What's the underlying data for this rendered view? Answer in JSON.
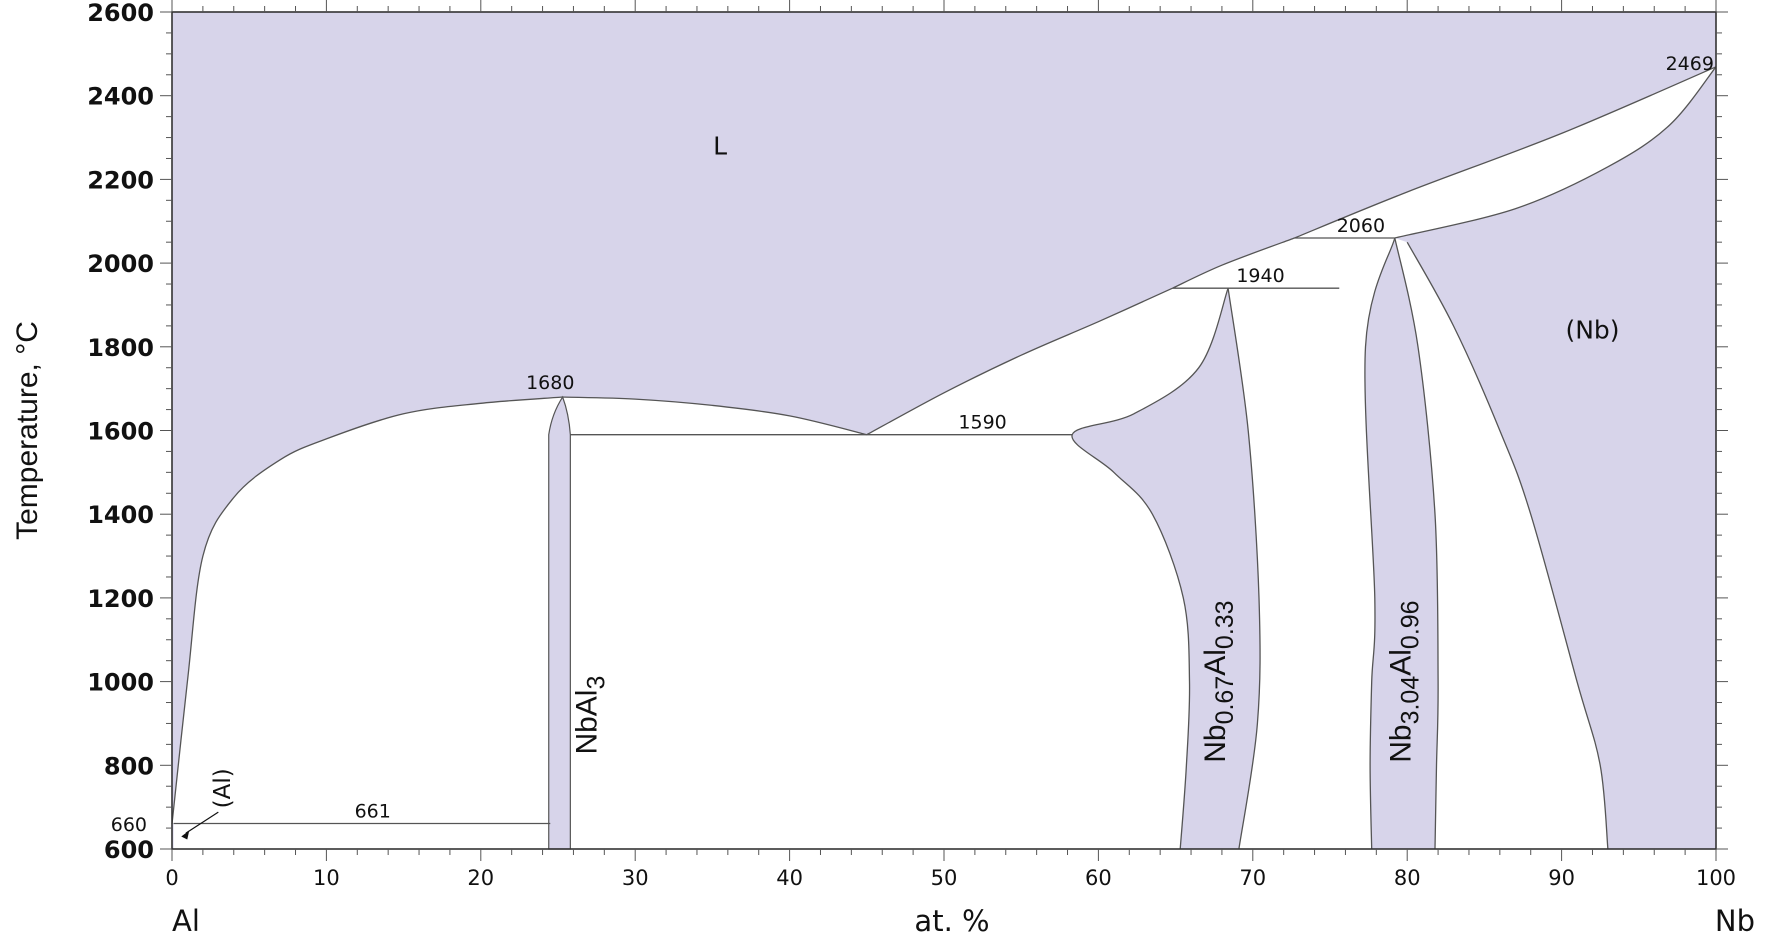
{
  "chart_data": {
    "type": "phase-diagram",
    "title": "",
    "ylabel": "Temperature, °C",
    "xlabel": "at. %",
    "x_left_element": "Al",
    "x_right_element": "Nb",
    "xlim": [
      0,
      100
    ],
    "ylim": [
      600,
      2600
    ],
    "x_ticks": [
      "0",
      "10",
      "20",
      "30",
      "40",
      "50",
      "60",
      "70",
      "80",
      "90",
      "100"
    ],
    "y_ticks": [
      "600",
      "800",
      "1000",
      "1200",
      "1400",
      "1600",
      "1800",
      "2000",
      "2200",
      "2400",
      "2600"
    ],
    "grid": false,
    "colors": {
      "phase_fill": "#d7d4ea",
      "line": "#555555",
      "background": "#ffffff"
    },
    "phase_labels": {
      "liquid": "L",
      "nb_solid": "(Nb)",
      "al_solid": "(Al)",
      "nbal3": {
        "base": "NbAl",
        "sub": "3"
      },
      "sigma": {
        "a": "Nb",
        "as": "0.67",
        "b": "Al",
        "bs": "0.33"
      },
      "a15": {
        "a": "Nb",
        "as": "3.04",
        "b": "Al",
        "bs": "0.96"
      }
    },
    "invariant_labels": [
      "2469",
      "2060",
      "1940",
      "1680",
      "1590",
      "661",
      "660"
    ],
    "invariants": [
      {
        "label": "2469",
        "type": "melting point",
        "x": 100,
        "T": 2469
      },
      {
        "label": "2060",
        "type": "peritectic",
        "x_range": [
          72.7,
          79.2
        ],
        "T": 2060
      },
      {
        "label": "1940",
        "type": "peritectic",
        "x_range": [
          64.8,
          75.6
        ],
        "T": 1940
      },
      {
        "label": "1680",
        "type": "congruent melting",
        "x": 25.3,
        "T": 1680
      },
      {
        "label": "1590",
        "type": "eutectic",
        "x_range": [
          25.8,
          58.3
        ],
        "T": 1590
      },
      {
        "label": "661",
        "type": "eutectic",
        "x_range": [
          0.1,
          24.5
        ],
        "T": 661
      },
      {
        "label": "660",
        "type": "melting point",
        "x": 0,
        "T": 660
      }
    ],
    "boundaries": {
      "liquidus_al_nbal3": [
        [
          0,
          660
        ],
        [
          1,
          1000
        ],
        [
          2,
          1300
        ],
        [
          4,
          1440
        ],
        [
          7,
          1530
        ],
        [
          10,
          1580
        ],
        [
          15,
          1640
        ],
        [
          20,
          1665
        ],
        [
          25.3,
          1680
        ]
      ],
      "liquidus_nbal3_eut": [
        [
          25.3,
          1680
        ],
        [
          30,
          1675
        ],
        [
          35,
          1660
        ],
        [
          40,
          1635
        ],
        [
          45,
          1590
        ]
      ],
      "liquidus_eut_1940": [
        [
          45,
          1590
        ],
        [
          50,
          1690
        ],
        [
          55,
          1780
        ],
        [
          60,
          1860
        ],
        [
          64.8,
          1940
        ]
      ],
      "liquidus_1940_2060": [
        [
          64.8,
          1940
        ],
        [
          68,
          1995
        ],
        [
          72.7,
          2060
        ]
      ],
      "liquidus_2060_Nb": [
        [
          72.7,
          2060
        ],
        [
          80,
          2170
        ],
        [
          90,
          2310
        ],
        [
          100,
          2469
        ]
      ],
      "solidus_2060_Nb": [
        [
          79.2,
          2060
        ],
        [
          87,
          2130
        ],
        [
          93,
          2230
        ],
        [
          97,
          2330
        ],
        [
          100,
          2469
        ]
      ],
      "nb_solvus": [
        [
          80,
          2050
        ],
        [
          83,
          1850
        ],
        [
          86,
          1600
        ],
        [
          88,
          1400
        ],
        [
          91,
          1000
        ],
        [
          92.5,
          800
        ],
        [
          93,
          600
        ]
      ],
      "a15_right": [
        [
          79.2,
          2060
        ],
        [
          80.7,
          1800
        ],
        [
          81.8,
          1400
        ],
        [
          82,
          1000
        ],
        [
          81.9,
          800
        ],
        [
          81.8,
          600
        ]
      ],
      "a15_left": [
        [
          79.2,
          2060
        ],
        [
          77.3,
          1800
        ],
        [
          77.9,
          1200
        ],
        [
          77.7,
          1000
        ],
        [
          77.6,
          800
        ],
        [
          77.7,
          600
        ]
      ],
      "sigma_right": [
        [
          68.4,
          1940
        ],
        [
          69.7,
          1600
        ],
        [
          70.4,
          1200
        ],
        [
          70.3,
          900
        ],
        [
          69.1,
          600
        ]
      ],
      "sigma_left": [
        [
          68.4,
          1940
        ],
        [
          66.5,
          1750
        ],
        [
          62.3,
          1640
        ],
        [
          58.3,
          1590
        ],
        [
          61,
          1500
        ],
        [
          63.5,
          1400
        ],
        [
          65.5,
          1200
        ],
        [
          65.9,
          1000
        ],
        [
          65.7,
          800
        ],
        [
          65.3,
          600
        ]
      ],
      "nbal3_phase": [
        [
          25.3,
          1680
        ],
        [
          24.4,
          1590
        ],
        [
          24.4,
          600
        ],
        [
          25.8,
          600
        ],
        [
          25.8,
          1590
        ]
      ]
    }
  }
}
